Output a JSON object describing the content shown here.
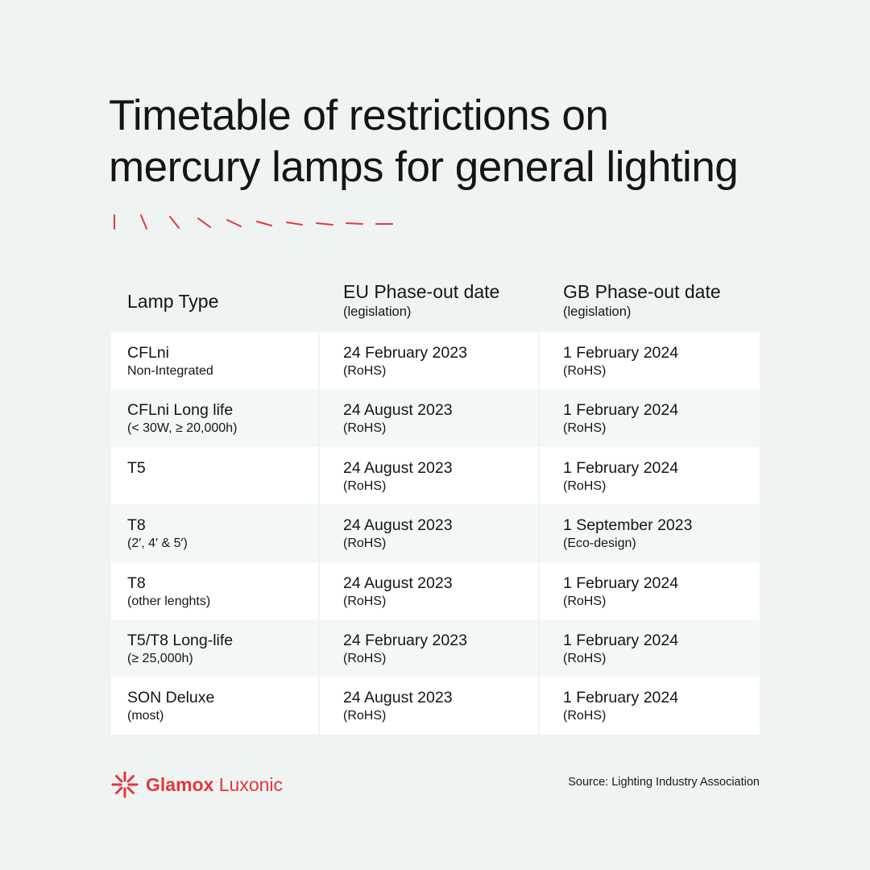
{
  "title": {
    "line1": "Timetable of restrictions on",
    "line2": "mercury lamps for general lighting"
  },
  "accent_color": "#e5363d",
  "table": {
    "headers": [
      {
        "main": "Lamp Type",
        "sub": ""
      },
      {
        "main": "EU Phase-out date",
        "sub": "(legislation)"
      },
      {
        "main": "GB Phase-out date",
        "sub": "(legislation)"
      }
    ],
    "rows": [
      {
        "type": "CFLni",
        "type_sub": "Non-Integrated",
        "eu": "24 February 2023",
        "eu_sub": "(RoHS)",
        "gb": "1 February 2024",
        "gb_sub": "(RoHS)"
      },
      {
        "type": "CFLni Long life",
        "type_sub": "(< 30W, ≥ 20,000h)",
        "eu": "24 August 2023",
        "eu_sub": "(RoHS)",
        "gb": "1 February 2024",
        "gb_sub": "(RoHS)"
      },
      {
        "type": "T5",
        "type_sub": "",
        "eu": "24 August 2023",
        "eu_sub": "(RoHS)",
        "gb": "1 February 2024",
        "gb_sub": "(RoHS)"
      },
      {
        "type": "T8",
        "type_sub": "(2′, 4′ & 5′)",
        "eu": "24 August 2023",
        "eu_sub": "(RoHS)",
        "gb": "1 September 2023",
        "gb_sub": "(Eco-design)"
      },
      {
        "type": "T8",
        "type_sub": "(other lenghts)",
        "eu": "24 August 2023",
        "eu_sub": "(RoHS)",
        "gb": "1 February 2024",
        "gb_sub": "(RoHS)"
      },
      {
        "type": "T5/T8 Long-life",
        "type_sub": "(≥ 25,000h)",
        "eu": "24 February 2023",
        "eu_sub": "(RoHS)",
        "gb": "1 February 2024",
        "gb_sub": "(RoHS)"
      },
      {
        "type": "SON Deluxe",
        "type_sub": "(most)",
        "eu": "24 August 2023",
        "eu_sub": "(RoHS)",
        "gb": "1 February 2024",
        "gb_sub": "(RoHS)"
      }
    ]
  },
  "footer": {
    "brand_bold": "Glamox",
    "brand_light": "Luxonic",
    "source": "Source: Lighting Industry Association"
  },
  "icons": {
    "logo": "sunburst-logo-icon",
    "dashes": "decorative-dash-row"
  }
}
